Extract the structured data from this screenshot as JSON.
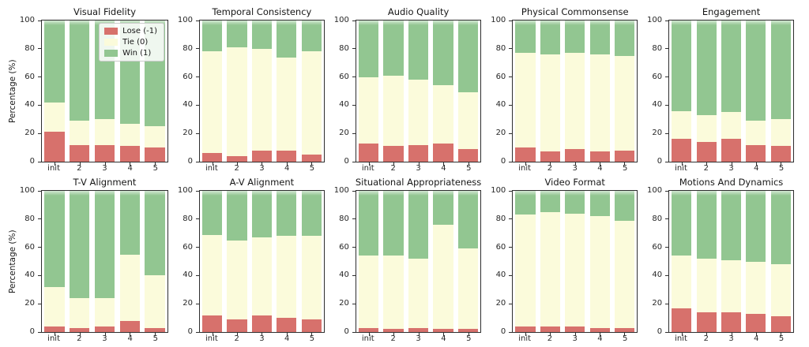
{
  "chart_data": {
    "type": "bar",
    "stacked": true,
    "unit": "percent",
    "grid_layout": {
      "rows": 2,
      "cols": 5
    },
    "categories": [
      "init",
      "2",
      "3",
      "4",
      "5"
    ],
    "ylabel": "Percentage (%)",
    "ylim": [
      0,
      100
    ],
    "yticks": [
      0,
      20,
      40,
      60,
      80,
      100
    ],
    "grid_lines": false,
    "legend": {
      "position": "upper-right-of-first-subplot",
      "entries": [
        {
          "label": "Lose (-1)",
          "color": "#d7716c"
        },
        {
          "label": "Tie (0)",
          "color": "#fbfbdb"
        },
        {
          "label": "Win (1)",
          "color": "#92c691"
        }
      ]
    },
    "subplots": [
      {
        "title": "Visual Fidelity",
        "series": [
          {
            "name": "Lose (-1)",
            "values": [
              21,
              12,
              12,
              11,
              10
            ]
          },
          {
            "name": "Tie (0)",
            "values": [
              21,
              17,
              18,
              16,
              15
            ]
          },
          {
            "name": "Win (1)",
            "values": [
              58,
              71,
              70,
              73,
              75
            ]
          }
        ]
      },
      {
        "title": "Temporal Consistency",
        "series": [
          {
            "name": "Lose (-1)",
            "values": [
              6,
              4,
              8,
              8,
              5
            ]
          },
          {
            "name": "Tie (0)",
            "values": [
              72,
              77,
              72,
              66,
              73
            ]
          },
          {
            "name": "Win (1)",
            "values": [
              22,
              19,
              20,
              26,
              22
            ]
          }
        ]
      },
      {
        "title": "Audio Quality",
        "series": [
          {
            "name": "Lose (-1)",
            "values": [
              13,
              11,
              12,
              13,
              9
            ]
          },
          {
            "name": "Tie (0)",
            "values": [
              47,
              50,
              46,
              41,
              40
            ]
          },
          {
            "name": "Win (1)",
            "values": [
              40,
              39,
              42,
              46,
              51
            ]
          }
        ]
      },
      {
        "title": "Physical Commonsense",
        "series": [
          {
            "name": "Lose (-1)",
            "values": [
              10,
              7,
              9,
              7,
              8
            ]
          },
          {
            "name": "Tie (0)",
            "values": [
              67,
              69,
              68,
              69,
              67
            ]
          },
          {
            "name": "Win (1)",
            "values": [
              23,
              24,
              23,
              24,
              25
            ]
          }
        ]
      },
      {
        "title": "Engagement",
        "series": [
          {
            "name": "Lose (-1)",
            "values": [
              16,
              14,
              16,
              12,
              11
            ]
          },
          {
            "name": "Tie (0)",
            "values": [
              20,
              19,
              19,
              17,
              19
            ]
          },
          {
            "name": "Win (1)",
            "values": [
              64,
              67,
              65,
              71,
              70
            ]
          }
        ]
      },
      {
        "title": "T-V Alignment",
        "series": [
          {
            "name": "Lose (-1)",
            "values": [
              4,
              3,
              4,
              8,
              3
            ]
          },
          {
            "name": "Tie (0)",
            "values": [
              28,
              21,
              20,
              47,
              37
            ]
          },
          {
            "name": "Win (1)",
            "values": [
              68,
              76,
              76,
              45,
              60
            ]
          }
        ]
      },
      {
        "title": "A-V Alignment",
        "series": [
          {
            "name": "Lose (-1)",
            "values": [
              12,
              9,
              12,
              10,
              9
            ]
          },
          {
            "name": "Tie (0)",
            "values": [
              57,
              56,
              55,
              58,
              59
            ]
          },
          {
            "name": "Win (1)",
            "values": [
              31,
              35,
              33,
              32,
              32
            ]
          }
        ]
      },
      {
        "title": "Situational Appropriateness",
        "series": [
          {
            "name": "Lose (-1)",
            "values": [
              3,
              2,
              3,
              2,
              2
            ]
          },
          {
            "name": "Tie (0)",
            "values": [
              51,
              52,
              49,
              74,
              57
            ]
          },
          {
            "name": "Win (1)",
            "values": [
              46,
              46,
              48,
              24,
              41
            ]
          }
        ]
      },
      {
        "title": "Video Format",
        "series": [
          {
            "name": "Lose (-1)",
            "values": [
              4,
              4,
              4,
              3,
              3
            ]
          },
          {
            "name": "Tie (0)",
            "values": [
              79,
              81,
              80,
              79,
              76
            ]
          },
          {
            "name": "Win (1)",
            "values": [
              17,
              15,
              16,
              18,
              21
            ]
          }
        ]
      },
      {
        "title": "Motions And Dynamics",
        "series": [
          {
            "name": "Lose (-1)",
            "values": [
              17,
              14,
              14,
              13,
              11
            ]
          },
          {
            "name": "Tie (0)",
            "values": [
              37,
              38,
              37,
              37,
              37
            ]
          },
          {
            "name": "Win (1)",
            "values": [
              46,
              48,
              49,
              50,
              52
            ]
          }
        ]
      }
    ]
  }
}
